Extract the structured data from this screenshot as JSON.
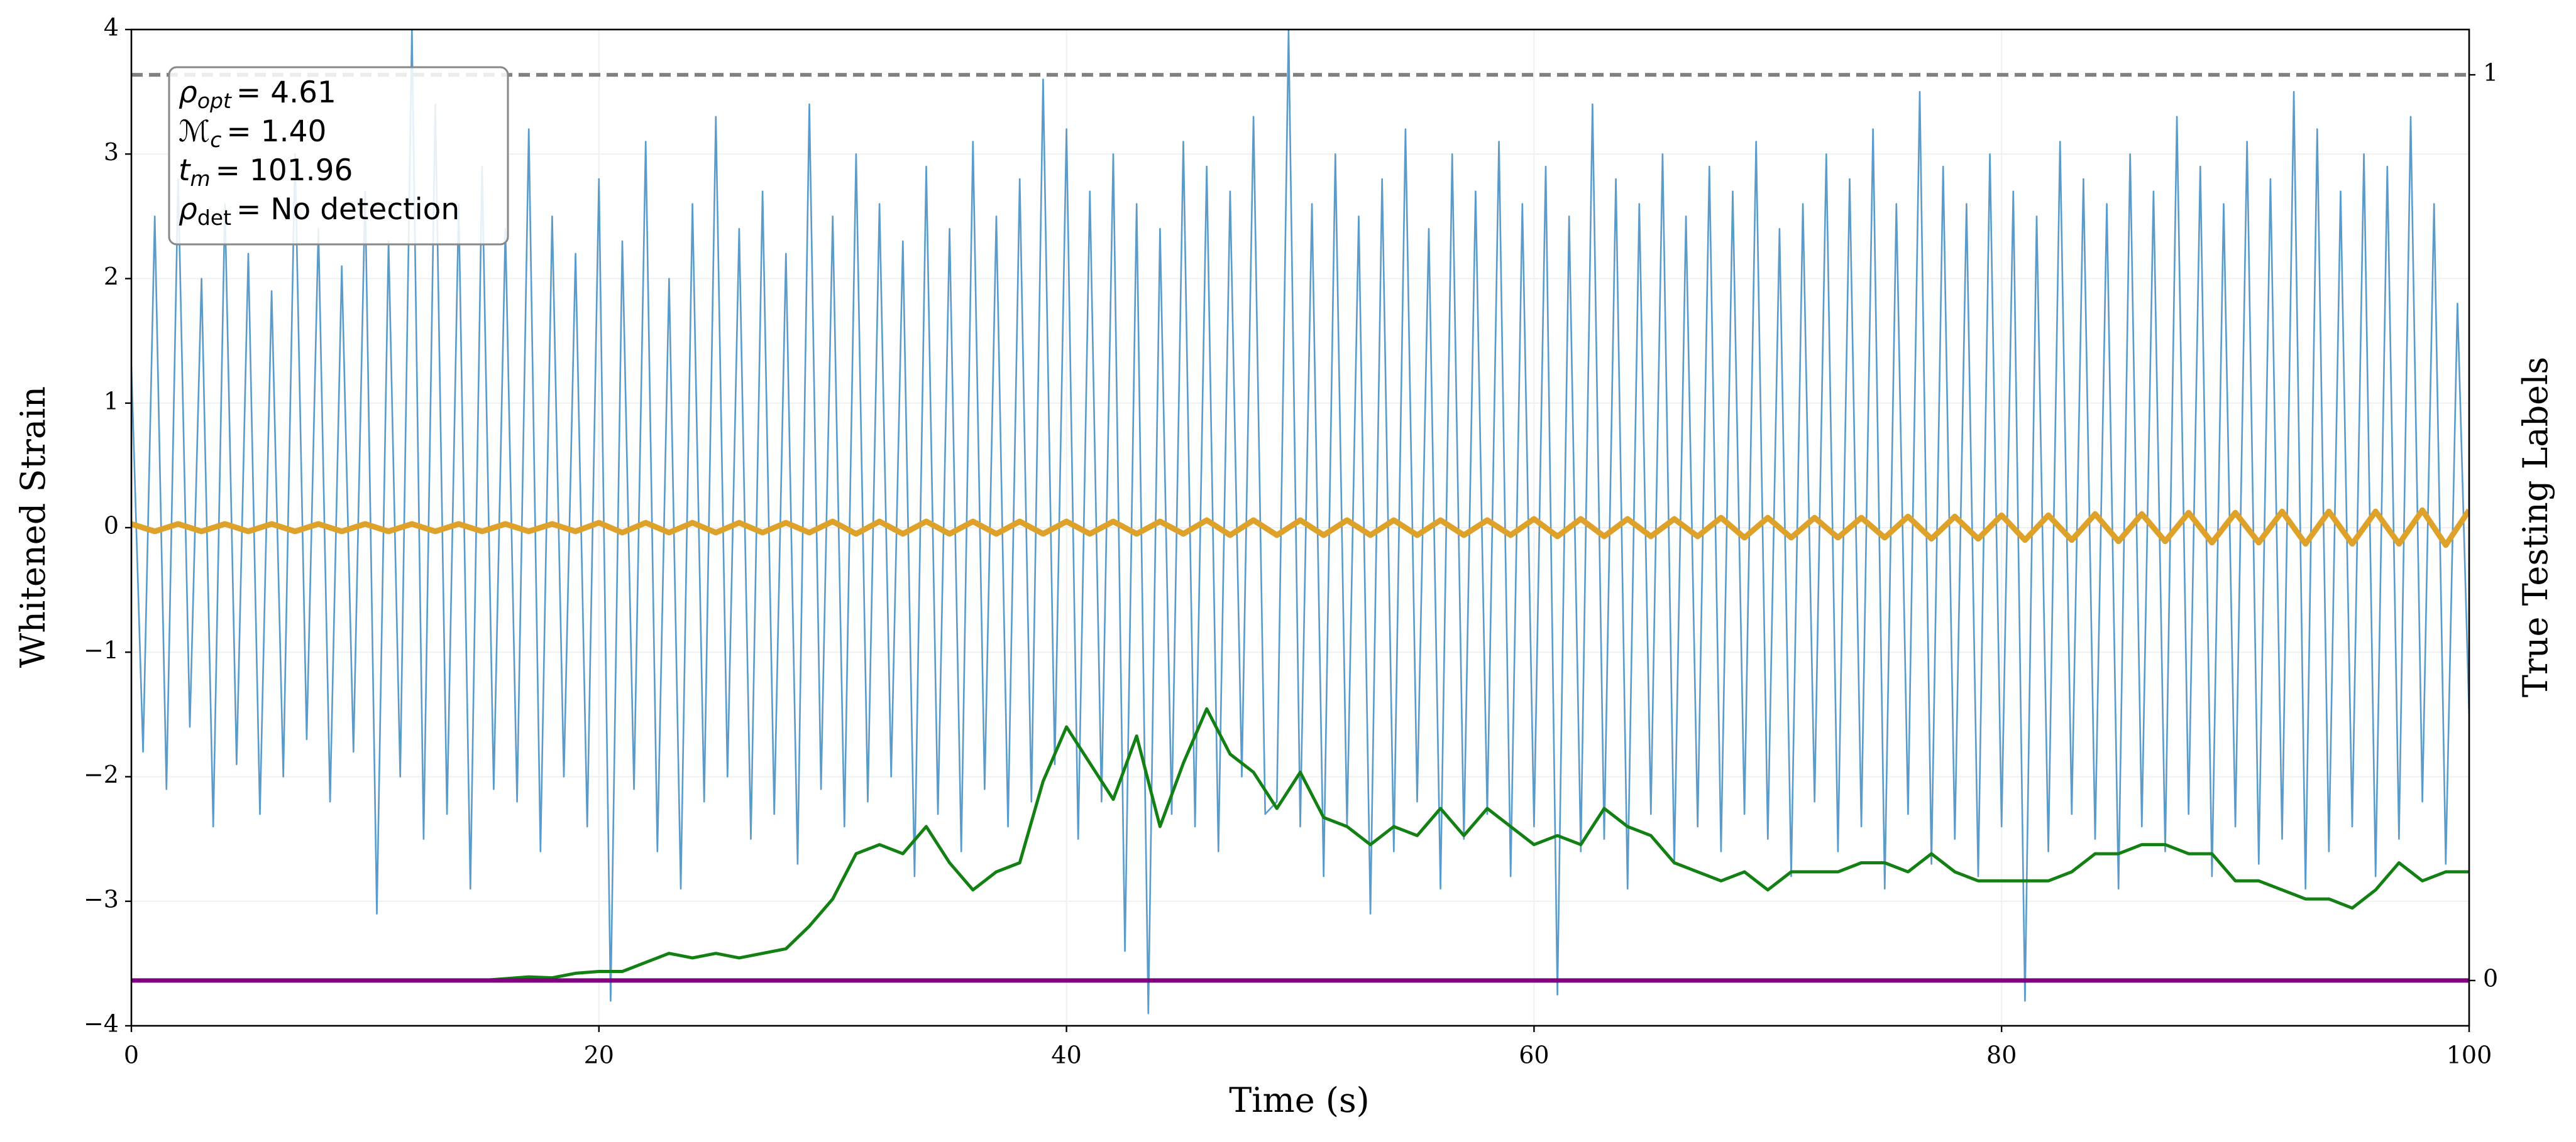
{
  "chart_data": {
    "type": "line",
    "xlabel": "Time (s)",
    "ylabel": "Whitened Strain",
    "y2label": "True Testing Labels",
    "xlim": [
      0,
      100
    ],
    "ylim": [
      -4,
      4
    ],
    "y2lim": [
      -0.05,
      1.05
    ],
    "xticks": [
      0,
      20,
      40,
      60,
      80,
      100
    ],
    "yticks": [
      {
        "value": -4,
        "label": "−4"
      },
      {
        "value": -3,
        "label": "−3"
      },
      {
        "value": -2,
        "label": "−2"
      },
      {
        "value": -1,
        "label": "−1"
      },
      0,
      1,
      2,
      3,
      4
    ],
    "y2ticks": [
      0,
      1
    ],
    "grid": true,
    "annotations": [
      {
        "symbol": "ρ",
        "subscript": "opt",
        "text": "= 4.61"
      },
      {
        "symbol": "ℳ",
        "subscript": "c",
        "text": "= 1.40"
      },
      {
        "symbol": "t",
        "subscript": "m",
        "text": "= 101.96"
      },
      {
        "symbol": "ρ",
        "subscript": "det",
        "text": "= No detection"
      }
    ],
    "series": [
      {
        "color": "#5a9bc9",
        "width": 2.6,
        "x": [
          0,
          0.5,
          1,
          1.5,
          2,
          2.5,
          3,
          3.5,
          4,
          4.5,
          5,
          5.5,
          6,
          6.5,
          7,
          7.5,
          8,
          8.5,
          9,
          9.5,
          10,
          10.5,
          11,
          11.5,
          12,
          12.5,
          13,
          13.5,
          14,
          14.5,
          15,
          15.5,
          16,
          16.5,
          17,
          17.5,
          18,
          18.5,
          19,
          19.5,
          20,
          20.5,
          21,
          21.5,
          22,
          22.5,
          23,
          23.5,
          24,
          24.5,
          25,
          25.5,
          26,
          26.5,
          27,
          27.5,
          28,
          28.5,
          29,
          29.5,
          30,
          30.5,
          31,
          31.5,
          32,
          32.5,
          33,
          33.5,
          34,
          34.5,
          35,
          35.5,
          36,
          36.5,
          37,
          37.5,
          38,
          38.5,
          39,
          39.5,
          40,
          40.5,
          41,
          41.5,
          42,
          42.5,
          43,
          43.5,
          44,
          44.5,
          45,
          45.5,
          46,
          46.5,
          47,
          47.5,
          48,
          48.5,
          49,
          49.5,
          50,
          50.5,
          51,
          51.5,
          52,
          52.5,
          53,
          53.5,
          54,
          54.5,
          55,
          55.5,
          56,
          56.5,
          57,
          57.5,
          58,
          58.5,
          59,
          59.5,
          60,
          60.5,
          61,
          61.5,
          62,
          62.5,
          63,
          63.5,
          64,
          64.5,
          65,
          65.5,
          66,
          66.5,
          67,
          67.5,
          68,
          68.5,
          69,
          69.5,
          70,
          70.5,
          71,
          71.5,
          72,
          72.5,
          73,
          73.5,
          74,
          74.5,
          75,
          75.5,
          76,
          76.5,
          77,
          77.5,
          78,
          78.5,
          79,
          79.5,
          80,
          80.5,
          81,
          81.5,
          82,
          82.5,
          83,
          83.5,
          84,
          84.5,
          85,
          85.5,
          86,
          86.5,
          87,
          87.5,
          88,
          88.5,
          89,
          89.5,
          90,
          90.5,
          91,
          91.5,
          92,
          92.5,
          93,
          93.5,
          94,
          94.5,
          95,
          95.5,
          96,
          96.5,
          97,
          97.5,
          98,
          98.5,
          99,
          99.5,
          100
        ],
        "values": [
          1.3,
          -1.8,
          2.5,
          -2.1,
          2.8,
          -1.6,
          2.0,
          -2.4,
          2.6,
          -1.9,
          2.2,
          -2.3,
          1.9,
          -2.0,
          3.0,
          -1.7,
          2.4,
          -2.2,
          2.1,
          -1.8,
          2.7,
          -3.1,
          2.3,
          -2.0,
          4.0,
          -2.5,
          3.4,
          -2.3,
          2.6,
          -2.9,
          2.9,
          -2.1,
          2.4,
          -2.2,
          3.2,
          -2.6,
          2.5,
          -2.0,
          2.2,
          -2.4,
          2.8,
          -3.8,
          2.3,
          -2.1,
          3.1,
          -2.6,
          2.0,
          -2.9,
          2.6,
          -2.2,
          3.3,
          -2.0,
          2.4,
          -2.5,
          2.7,
          -2.3,
          2.2,
          -2.7,
          3.4,
          -2.1,
          2.5,
          -2.4,
          3.0,
          -2.2,
          2.6,
          -2.0,
          2.3,
          -2.8,
          2.9,
          -2.3,
          2.4,
          -2.6,
          3.1,
          -2.1,
          2.5,
          -2.4,
          2.8,
          -2.2,
          3.6,
          -1.9,
          3.2,
          -2.5,
          2.7,
          -2.2,
          3.0,
          -3.4,
          2.6,
          -3.9,
          2.4,
          -2.3,
          3.1,
          -2.4,
          2.9,
          -2.6,
          2.7,
          -2.0,
          3.3,
          -2.3,
          -2.2,
          4.0,
          -2.4,
          2.6,
          -2.8,
          3.0,
          -2.4,
          2.5,
          -3.1,
          2.8,
          -2.6,
          3.2,
          -2.2,
          2.4,
          -2.9,
          3.0,
          -2.5,
          2.7,
          -2.3,
          3.1,
          -2.8,
          2.6,
          -2.4,
          2.9,
          -3.75,
          2.5,
          -2.6,
          3.4,
          -2.5,
          2.8,
          -2.9,
          2.6,
          -2.3,
          3.0,
          -2.7,
          2.5,
          -2.4,
          2.9,
          -2.6,
          2.7,
          -2.3,
          3.1,
          -2.5,
          2.4,
          -2.8,
          2.6,
          -2.2,
          3.0,
          -2.6,
          2.8,
          -2.4,
          3.2,
          -2.9,
          2.6,
          -2.3,
          3.5,
          -2.7,
          2.9,
          -2.5,
          2.6,
          -2.8,
          3.0,
          -2.4,
          2.7,
          -3.8,
          2.5,
          -2.6,
          3.1,
          -2.3,
          2.8,
          -2.5,
          2.6,
          -2.9,
          3.0,
          -2.4,
          2.7,
          -2.6,
          3.3,
          -2.3,
          2.9,
          -2.8,
          2.6,
          -2.4,
          3.1,
          -2.7,
          2.8,
          -2.5,
          3.5,
          -2.9,
          3.2,
          -2.6,
          2.7,
          -2.4,
          3.0,
          -2.8,
          2.9,
          -2.5,
          3.3,
          -2.2,
          2.6,
          -2.7,
          1.8,
          -1.5
        ]
      },
      {
        "color": "#dea12a",
        "width": 9,
        "x": [
          0,
          1,
          2,
          3,
          4,
          5,
          6,
          7,
          8,
          9,
          10,
          11,
          12,
          13,
          14,
          15,
          16,
          17,
          18,
          19,
          20,
          21,
          22,
          23,
          24,
          25,
          26,
          27,
          28,
          29,
          30,
          31,
          32,
          33,
          34,
          35,
          36,
          37,
          38,
          39,
          40,
          41,
          42,
          43,
          44,
          45,
          46,
          47,
          48,
          49,
          50,
          51,
          52,
          53,
          54,
          55,
          56,
          57,
          58,
          59,
          60,
          61,
          62,
          63,
          64,
          65,
          66,
          67,
          68,
          69,
          70,
          71,
          72,
          73,
          74,
          75,
          76,
          77,
          78,
          79,
          80,
          81,
          82,
          83,
          84,
          85,
          86,
          87,
          88,
          89,
          90,
          91,
          92,
          93,
          94,
          95,
          96,
          97,
          98,
          99,
          100
        ],
        "values": [
          0.03,
          -0.03,
          0.03,
          -0.03,
          0.03,
          -0.03,
          0.03,
          -0.03,
          0.03,
          -0.03,
          0.03,
          -0.03,
          0.03,
          -0.03,
          0.03,
          -0.03,
          0.03,
          -0.03,
          0.03,
          -0.03,
          0.04,
          -0.04,
          0.04,
          -0.04,
          0.04,
          -0.04,
          0.04,
          -0.04,
          0.04,
          -0.04,
          0.05,
          -0.05,
          0.05,
          -0.05,
          0.05,
          -0.05,
          0.05,
          -0.05,
          0.05,
          -0.05,
          0.05,
          -0.05,
          0.05,
          -0.05,
          0.05,
          -0.05,
          0.06,
          -0.06,
          0.06,
          -0.06,
          0.06,
          -0.06,
          0.06,
          -0.06,
          0.06,
          -0.06,
          0.06,
          -0.06,
          0.06,
          -0.06,
          0.07,
          -0.07,
          0.07,
          -0.07,
          0.07,
          -0.07,
          0.07,
          -0.07,
          0.08,
          -0.08,
          0.08,
          -0.08,
          0.08,
          -0.08,
          0.08,
          -0.08,
          0.09,
          -0.09,
          0.09,
          -0.09,
          0.1,
          -0.1,
          0.1,
          -0.1,
          0.11,
          -0.11,
          0.11,
          -0.11,
          0.12,
          -0.12,
          0.12,
          -0.12,
          0.13,
          -0.13,
          0.13,
          -0.13,
          0.13,
          -0.13,
          0.14,
          -0.14,
          0.14
        ]
      },
      {
        "color": "#138013",
        "width": 5,
        "axis": "y2",
        "x": [
          0,
          1,
          2,
          3,
          4,
          5,
          6,
          7,
          8,
          9,
          10,
          11,
          12,
          13,
          14,
          15,
          16,
          17,
          18,
          19,
          20,
          21,
          22,
          23,
          24,
          25,
          26,
          27,
          28,
          29,
          30,
          31,
          32,
          33,
          34,
          35,
          36,
          37,
          38,
          39,
          40,
          41,
          42,
          43,
          44,
          45,
          46,
          47,
          48,
          49,
          50,
          51,
          52,
          53,
          54,
          55,
          56,
          57,
          58,
          59,
          60,
          61,
          62,
          63,
          64,
          65,
          66,
          67,
          68,
          69,
          70,
          71,
          72,
          73,
          74,
          75,
          76,
          77,
          78,
          79,
          80,
          81,
          82,
          83,
          84,
          85,
          86,
          87,
          88,
          89,
          90,
          91,
          92,
          93,
          94,
          95,
          96,
          97,
          98,
          99,
          100
        ],
        "values": [
          0,
          0,
          0,
          0,
          0,
          0,
          0,
          0,
          0,
          0,
          0,
          0,
          0,
          0,
          0,
          0,
          0.002,
          0.004,
          0.003,
          0.008,
          0.01,
          0.01,
          0.02,
          0.03,
          0.025,
          0.03,
          0.025,
          0.03,
          0.035,
          0.06,
          0.09,
          0.14,
          0.15,
          0.14,
          0.17,
          0.13,
          0.1,
          0.12,
          0.13,
          0.22,
          0.28,
          0.24,
          0.2,
          0.27,
          0.17,
          0.24,
          0.3,
          0.25,
          0.23,
          0.19,
          0.23,
          0.18,
          0.17,
          0.15,
          0.17,
          0.16,
          0.19,
          0.16,
          0.19,
          0.17,
          0.15,
          0.16,
          0.15,
          0.19,
          0.17,
          0.16,
          0.13,
          0.12,
          0.11,
          0.12,
          0.1,
          0.12,
          0.12,
          0.12,
          0.13,
          0.13,
          0.12,
          0.14,
          0.12,
          0.11,
          0.11,
          0.11,
          0.11,
          0.12,
          0.14,
          0.14,
          0.15,
          0.15,
          0.14,
          0.14,
          0.11,
          0.11,
          0.1,
          0.09,
          0.09,
          0.08,
          0.1,
          0.13,
          0.11,
          0.12,
          0.12
        ]
      },
      {
        "color": "#800080",
        "width": 7,
        "axis": "y2",
        "x": [
          0,
          100
        ],
        "values": [
          0,
          0
        ]
      },
      {
        "color": "#808080",
        "width": 6,
        "axis": "y2",
        "dashed": true,
        "x": [
          0,
          100
        ],
        "values": [
          1,
          1
        ]
      }
    ]
  }
}
